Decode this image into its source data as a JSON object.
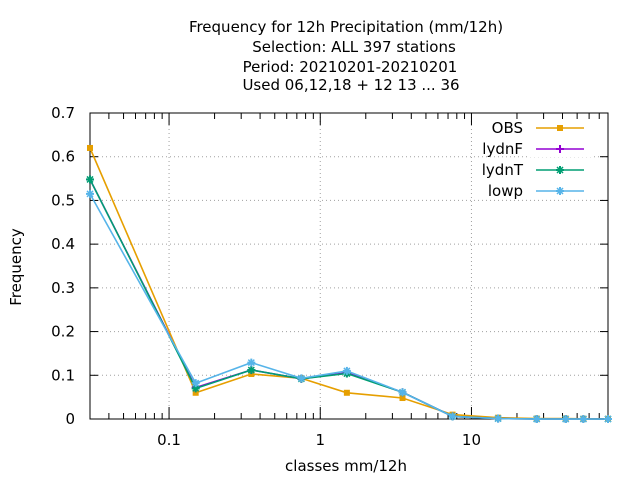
{
  "chart_data": {
    "type": "line",
    "title_lines": [
      "Frequency  for 12h Precipitation (mm/12h)",
      "Selection: ALL    397 stations",
      "Period: 20210201-20210201",
      "Used  06,12,18  + 12 13 ... 36"
    ],
    "xlabel": "classes mm/12h",
    "ylabel": "Frequency",
    "x_scale": "log",
    "xlim": [
      0.03,
      80
    ],
    "ylim": [
      0,
      0.7
    ],
    "x_tick_labels": [
      {
        "value": 0.1,
        "label": "0.1"
      },
      {
        "value": 1,
        "label": "1"
      },
      {
        "value": 10,
        "label": "10"
      }
    ],
    "y_tick_labels": [
      {
        "value": 0,
        "label": "0"
      },
      {
        "value": 0.1,
        "label": "0.1"
      },
      {
        "value": 0.2,
        "label": "0.2"
      },
      {
        "value": 0.3,
        "label": "0.3"
      },
      {
        "value": 0.4,
        "label": "0.4"
      },
      {
        "value": 0.5,
        "label": "0.5"
      },
      {
        "value": 0.6,
        "label": "0.6"
      },
      {
        "value": 0.7,
        "label": "0.7"
      }
    ],
    "grid": true,
    "legend_position": "top-right",
    "x": [
      0.03,
      0.15,
      0.35,
      0.75,
      1.5,
      3.5,
      7.5,
      15,
      27,
      42,
      55,
      80
    ],
    "series": [
      {
        "name": "OBS",
        "color": "#e69f00",
        "marker": "square",
        "values": [
          0.62,
          0.06,
          0.103,
          0.093,
          0.06,
          0.048,
          0.01,
          0.003,
          0.001,
          0.001,
          0.0005,
          0.0005
        ]
      },
      {
        "name": "lydnF",
        "color": "#9400d3",
        "marker": "plus",
        "values": [
          0.548,
          0.072,
          0.112,
          0.092,
          0.106,
          0.061,
          0.006,
          0.001,
          0.0,
          0.0,
          0.0,
          0.0
        ]
      },
      {
        "name": "lydnT",
        "color": "#009e73",
        "marker": "star",
        "values": [
          0.548,
          0.07,
          0.112,
          0.092,
          0.104,
          0.061,
          0.006,
          0.001,
          0.0,
          0.0,
          0.0,
          0.0
        ]
      },
      {
        "name": "lowp",
        "color": "#56b4e9",
        "marker": "star",
        "values": [
          0.515,
          0.082,
          0.129,
          0.093,
          0.11,
          0.061,
          0.006,
          0.001,
          0.0,
          0.0,
          0.0,
          0.0
        ]
      }
    ]
  }
}
